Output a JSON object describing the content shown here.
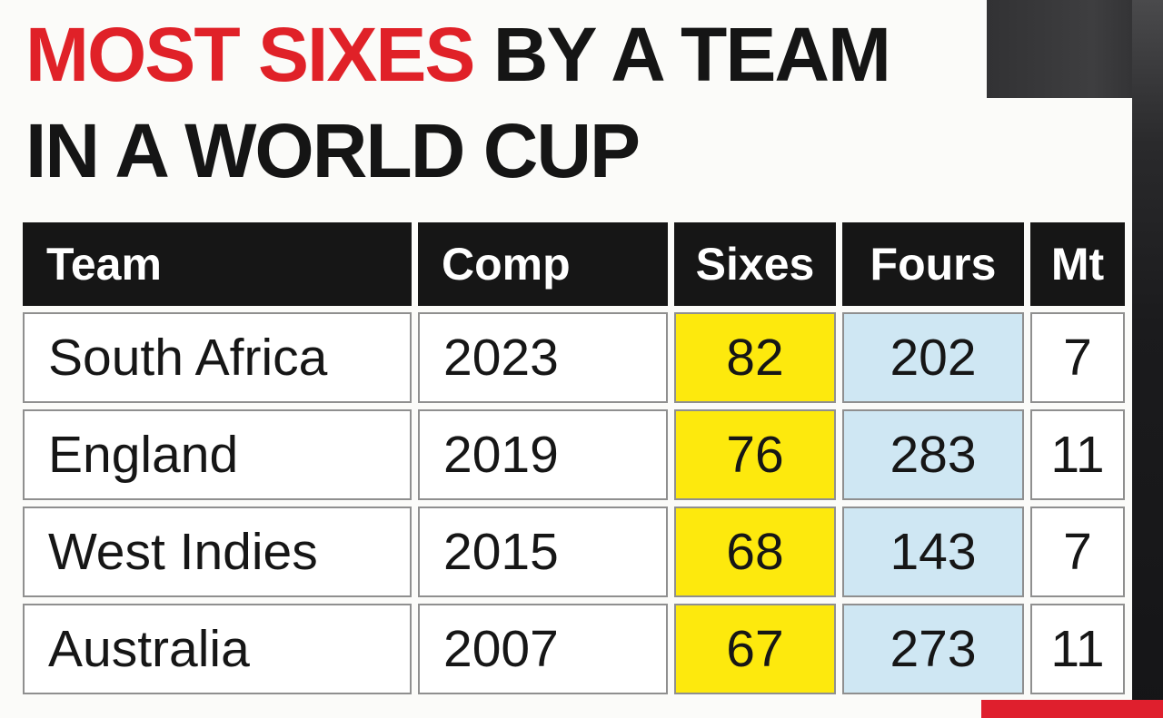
{
  "title": {
    "highlight": "MOST SIXES",
    "rest": " BY A TEAM",
    "line2": "IN A WORLD CUP"
  },
  "chart_data": {
    "type": "table",
    "title": "MOST SIXES BY A TEAM IN A WORLD CUP",
    "columns": [
      "Team",
      "Comp",
      "Sixes",
      "Fours",
      "Mt"
    ],
    "rows": [
      [
        "South Africa",
        "2023",
        "82",
        "202",
        "7"
      ],
      [
        "England",
        "2019",
        "76",
        "283",
        "11"
      ],
      [
        "West Indies",
        "2015",
        "68",
        "143",
        "7"
      ],
      [
        "Australia",
        "2007",
        "67",
        "273",
        "11"
      ]
    ],
    "colors": {
      "title_red": "#e02128",
      "header_bg": "#161616",
      "sixes_cell": "#fde90d",
      "fours_cell": "#cfe7f3",
      "border_gray": "#8f8f8f"
    }
  }
}
